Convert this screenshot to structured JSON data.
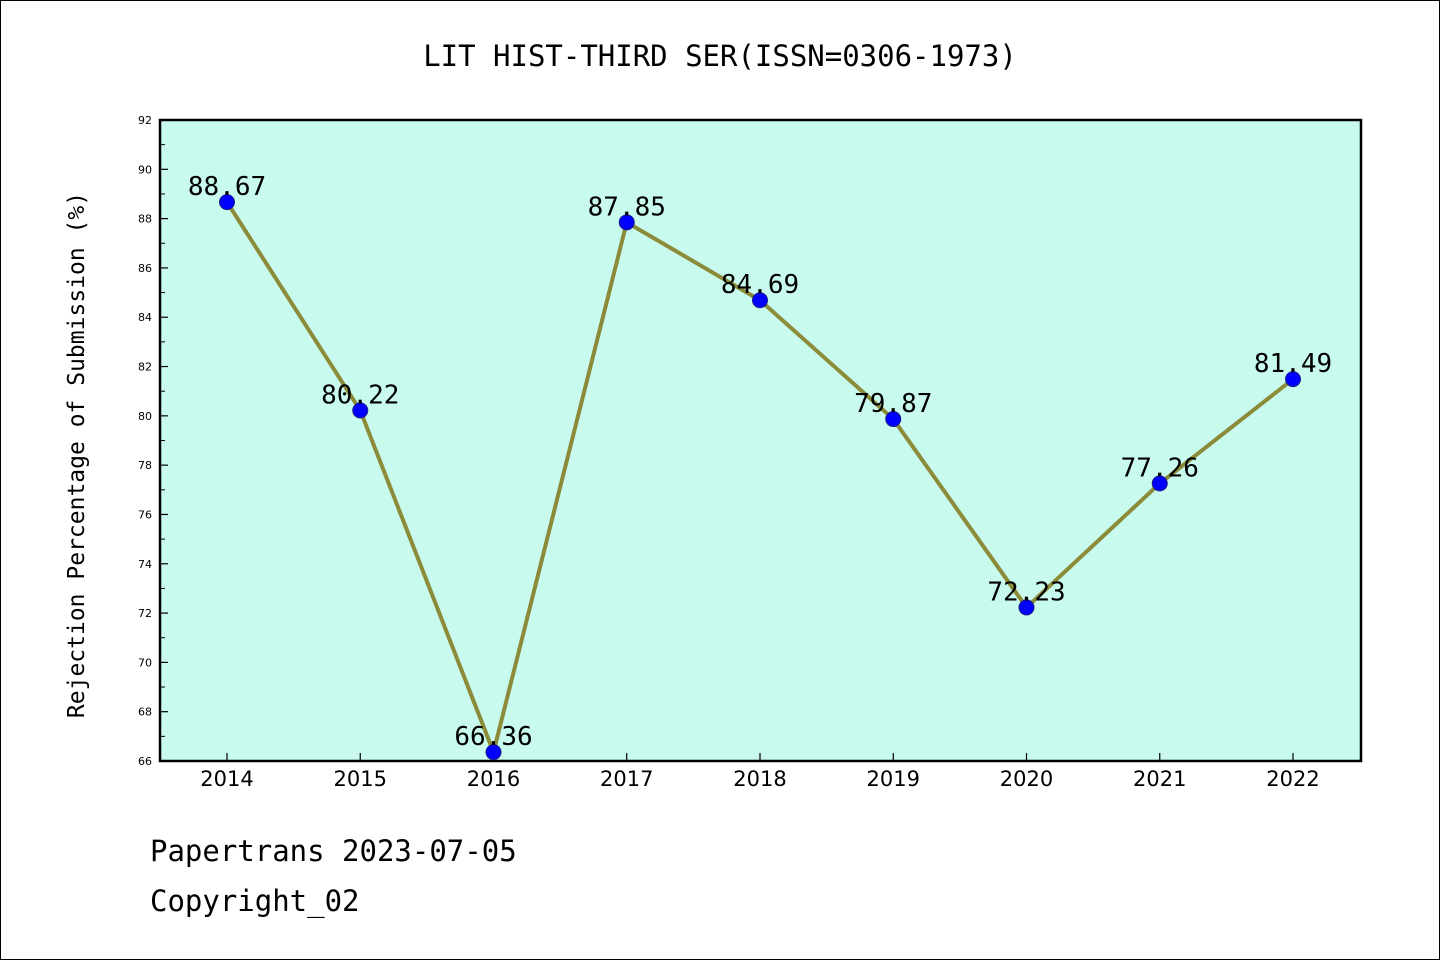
{
  "chart_data": {
    "type": "line",
    "title": "LIT HIST-THIRD SER(ISSN=0306-1973)",
    "xlabel": "",
    "ylabel": "Rejection Percentage of Submission (%)",
    "categories": [
      "2014",
      "2015",
      "2016",
      "2017",
      "2018",
      "2019",
      "2020",
      "2021",
      "2022"
    ],
    "values": [
      88.67,
      80.22,
      66.36,
      87.85,
      84.69,
      79.87,
      72.23,
      77.26,
      81.49
    ],
    "data_labels": [
      "88.67",
      "80.22",
      "66.36",
      "87.85",
      "84.69",
      "79.87",
      "72.23",
      "77.26",
      "81.49"
    ],
    "ylim": [
      66,
      92
    ],
    "yticks": [
      "66",
      "68",
      "70",
      "72",
      "74",
      "76",
      "78",
      "80",
      "82",
      "84",
      "86",
      "88",
      "90",
      "92"
    ],
    "grid": false,
    "legend": "none",
    "colors": {
      "plot_background": "#c8fbee",
      "line": "#8b8b3a",
      "marker": "#0000ff"
    }
  },
  "footer": {
    "line1": "Papertrans 2023-07-05",
    "line2": "Copyright_02"
  }
}
